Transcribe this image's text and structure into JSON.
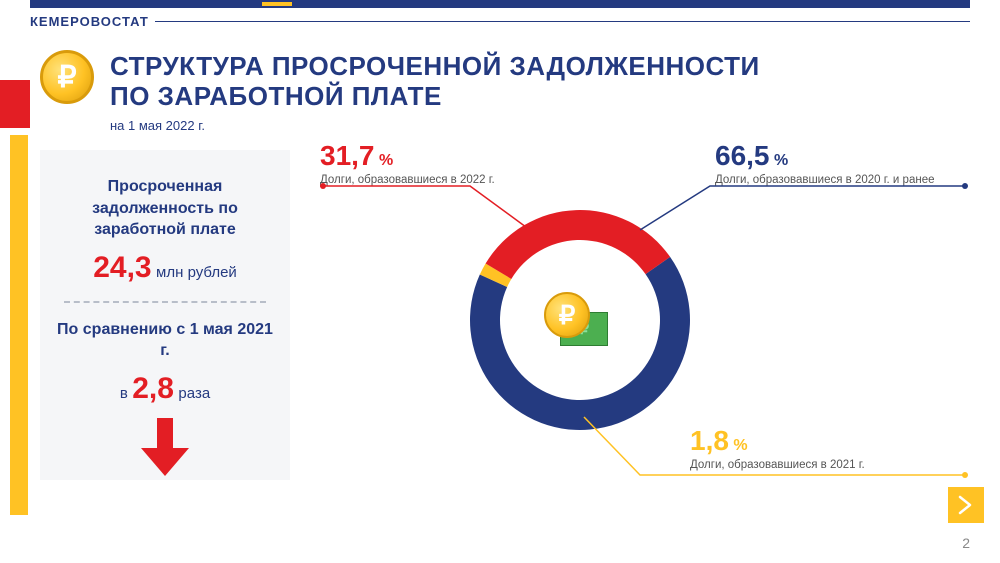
{
  "org": "КЕМЕРОВОСТАТ",
  "title_line1": "СТРУКТУРА ПРОСРОЧЕННОЙ ЗАДОЛЖЕННОСТИ",
  "title_line2": "ПО ЗАРАБОТНОЙ ПЛАТЕ",
  "subtitle": "на 1 мая  2022 г.",
  "panel": {
    "heading": "Просроченная задолженность по заработной плате",
    "value": "24,3",
    "unit": "млн рублей",
    "compare_label": "По сравнению с 1 мая 2021 г.",
    "ratio_prefix": "в",
    "ratio_value": "2,8",
    "ratio_suffix": "раза"
  },
  "chart": {
    "type": "donut",
    "radius": 110,
    "inner_radius": 80,
    "center_bg": "#ffffff",
    "slices": [
      {
        "key": "s2020",
        "label": "Долги,  образовавшиеся в 2020 г. и ранее",
        "pct": 66.5,
        "display": "66,5",
        "color": "#243a80"
      },
      {
        "key": "s2021",
        "label": "Долги,  образовавшиеся в 2021 г.",
        "pct": 1.8,
        "display": "1,8",
        "color": "#ffc224"
      },
      {
        "key": "s2022",
        "label": "Долги,  образовавшиеся в 2022 г.",
        "pct": 31.7,
        "display": "31,7",
        "color": "#e31e24"
      }
    ],
    "start_angle_deg": -35
  },
  "colors": {
    "navy": "#243a80",
    "red": "#e31e24",
    "yellow": "#ffc224",
    "panel_bg": "#f5f6f8",
    "desc_grey": "#555555"
  },
  "page_number": "2"
}
